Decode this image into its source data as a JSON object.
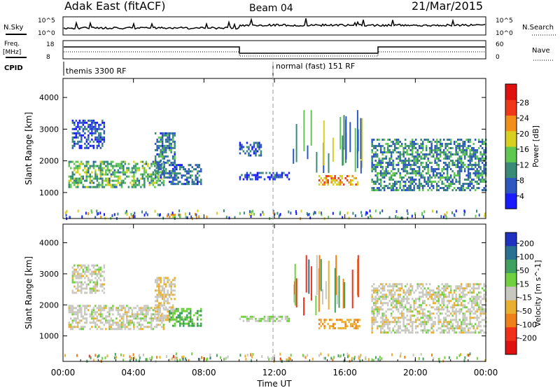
{
  "header": {
    "title": "Adak East (fitACF)",
    "beam": "Beam 04",
    "date": "21/Mar/2015"
  },
  "status_panels": {
    "nsky_label": "N.Sky",
    "nsky_ticks": [
      "10^5",
      "10^0"
    ],
    "nsearch_label": "N.Search",
    "nsearch_ticks": [
      "10^5",
      "10^0"
    ],
    "freq_label": "Freq.",
    "freq_unit": "[MHz]",
    "freq_ticks": [
      "18",
      "8"
    ],
    "nave_label": "Nave",
    "nave_ticks": [
      "60",
      "0"
    ],
    "cpid_label": "CPID",
    "cpid_modes": [
      {
        "label": "themis 3300 RF",
        "start_hour": 0,
        "end_hour": 12
      },
      {
        "label": "normal (fast) 151 RF",
        "start_hour": 12,
        "end_hour": 24
      }
    ]
  },
  "x_axis": {
    "title": "Time UT",
    "ticks": [
      "00:00",
      "04:00",
      "08:00",
      "12:00",
      "16:00",
      "20:00",
      "00:00"
    ]
  },
  "chart_data": [
    {
      "type": "heatmap",
      "xlabel": "Time UT",
      "ylabel": "Slant Range [km]",
      "xlim": [
        0,
        24
      ],
      "ylim": [
        180,
        4600
      ],
      "yticks": [
        "1000",
        "2000",
        "3000",
        "4000"
      ],
      "colorbar": {
        "label": "Power [dB]",
        "ticks": [
          "4",
          "8",
          "12",
          "16",
          "20",
          "24",
          "28"
        ],
        "range": [
          0,
          30
        ],
        "colors": [
          "#1a1aff",
          "#2e58c0",
          "#3a8a78",
          "#60c850",
          "#d8d020",
          "#f09018",
          "#f03818",
          "#e01010"
        ]
      },
      "regions": [
        {
          "t0": 0.3,
          "t1": 5.7,
          "r0": 1200,
          "r1": 2000,
          "level": 12
        },
        {
          "t0": 5.2,
          "t1": 6.3,
          "r0": 1500,
          "r1": 2900,
          "level": 8
        },
        {
          "t0": 0.5,
          "t1": 2.3,
          "r0": 2400,
          "r1": 3300,
          "level": 5
        },
        {
          "t0": 6.0,
          "t1": 7.8,
          "r0": 1300,
          "r1": 1900,
          "level": 7
        },
        {
          "t0": 10.0,
          "t1": 11.2,
          "r0": 2200,
          "r1": 2600,
          "level": 5
        },
        {
          "t0": 10.0,
          "t1": 12.8,
          "r0": 1450,
          "r1": 1650,
          "level": 5
        },
        {
          "t0": 14.5,
          "t1": 16.8,
          "r0": 1250,
          "r1": 1550,
          "level": 20
        },
        {
          "t0": 17.5,
          "t1": 24.0,
          "r0": 1100,
          "r1": 2700,
          "level": 9
        },
        {
          "t0": 6.0,
          "t1": 6.6,
          "r0": 230,
          "r1": 330,
          "level": 18
        }
      ]
    },
    {
      "type": "heatmap",
      "xlabel": "Time UT",
      "ylabel": "Slant Range [km]",
      "xlim": [
        0,
        24
      ],
      "ylim": [
        180,
        4600
      ],
      "yticks": [
        "1000",
        "2000",
        "3000",
        "4000"
      ],
      "colorbar": {
        "label": "Velocity [m s^-1]",
        "ticks": [
          "200",
          "100",
          "50",
          "15",
          "-15",
          "-50",
          "-100",
          "-200"
        ],
        "range": [
          -250,
          250
        ],
        "colors": [
          "#2030c0",
          "#2a7090",
          "#40a060",
          "#70d040",
          "#c8c8c0",
          "#e8b030",
          "#f08018",
          "#f03018",
          "#e01010"
        ]
      },
      "regions": [
        {
          "t0": 0.3,
          "t1": 5.7,
          "r0": 1200,
          "r1": 2000,
          "level": 0
        },
        {
          "t0": 5.2,
          "t1": 6.3,
          "r0": 1500,
          "r1": 2900,
          "level": -20
        },
        {
          "t0": 0.5,
          "t1": 2.3,
          "r0": 2400,
          "r1": 3300,
          "level": 0
        },
        {
          "t0": 6.0,
          "t1": 7.8,
          "r0": 1300,
          "r1": 1900,
          "level": 80
        },
        {
          "t0": 10.0,
          "t1": 12.8,
          "r0": 1450,
          "r1": 1650,
          "level": 30
        },
        {
          "t0": 14.5,
          "t1": 16.8,
          "r0": 1250,
          "r1": 1550,
          "level": -70
        },
        {
          "t0": 17.5,
          "t1": 24.0,
          "r0": 1100,
          "r1": 2700,
          "level": 0
        },
        {
          "t0": 6.0,
          "t1": 6.6,
          "r0": 230,
          "r1": 330,
          "level": 30
        }
      ]
    }
  ]
}
